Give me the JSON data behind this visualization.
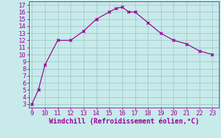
{
  "x": [
    9,
    9.5,
    10,
    11,
    12,
    13,
    14,
    15,
    15.5,
    16,
    16.5,
    17,
    18,
    19,
    20,
    21,
    22,
    23
  ],
  "y": [
    3,
    5,
    8.5,
    12,
    12,
    13.3,
    15,
    16,
    16.5,
    16.7,
    16,
    16,
    14.5,
    13,
    12,
    11.5,
    10.5,
    10
  ],
  "line_color": "#990099",
  "marker": "x",
  "bg_color": "#c8eaea",
  "grid_color": "#a0c8c8",
  "axis_label_color": "#990099",
  "tick_color": "#990099",
  "xlabel": "Windchill (Refroidissement éolien,°C)",
  "ylabel": "",
  "xlim": [
    8.75,
    23.5
  ],
  "ylim": [
    2.5,
    17.5
  ],
  "xticks": [
    9,
    10,
    11,
    12,
    13,
    14,
    15,
    16,
    17,
    18,
    19,
    20,
    21,
    22,
    23
  ],
  "yticks": [
    3,
    4,
    5,
    6,
    7,
    8,
    9,
    10,
    11,
    12,
    13,
    14,
    15,
    16,
    17
  ],
  "xlabel_fontsize": 7,
  "tick_fontsize": 6.5,
  "spine_color": "#990099",
  "linewidth": 0.9,
  "markersize": 3.5
}
